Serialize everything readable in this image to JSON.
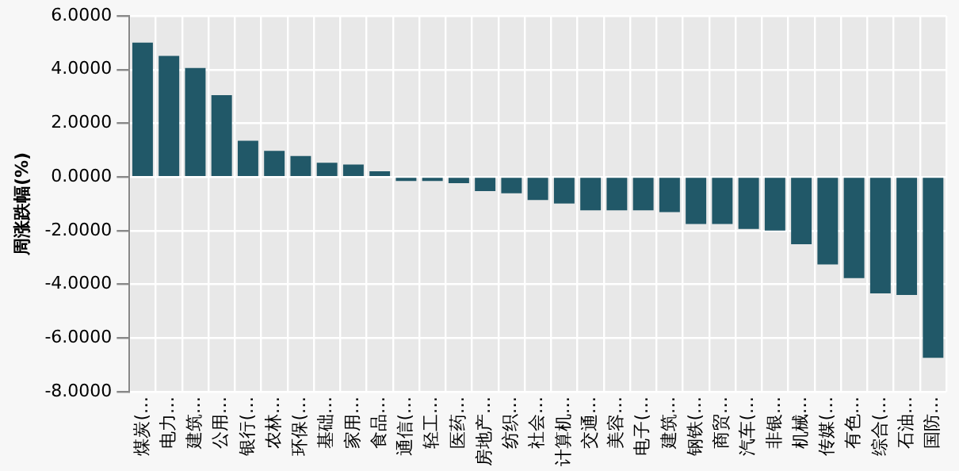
{
  "chart_data": {
    "type": "bar",
    "ylabel": "周涨跌幅(%)",
    "categories": [
      "煤炭(…",
      "电力…",
      "建筑…",
      "公用…",
      "银行(…",
      "农林…",
      "环保(…",
      "基础…",
      "家用…",
      "食品…",
      "通信(…",
      "轻工…",
      "医药…",
      "房地产…",
      "纺织…",
      "社会…",
      "计算机…",
      "交通…",
      "美容…",
      "电子(…",
      "建筑…",
      "钢铁(…",
      "商贸…",
      "汽车(…",
      "非银…",
      "机械…",
      "传媒(…",
      "有色…",
      "综合(…",
      "石油…",
      "国防…"
    ],
    "values": [
      5.0,
      4.51,
      4.06,
      3.05,
      1.35,
      0.97,
      0.78,
      0.53,
      0.46,
      0.21,
      -0.15,
      -0.15,
      -0.23,
      -0.53,
      -0.61,
      -0.86,
      -0.99,
      -1.24,
      -1.24,
      -1.24,
      -1.31,
      -1.75,
      -1.75,
      -1.94,
      -2.0,
      -2.51,
      -3.26,
      -3.77,
      -4.34,
      -4.4,
      -6.74
    ],
    "color": "#215868",
    "ylim": [
      -8,
      6
    ],
    "yticks": [
      {
        "value": -8,
        "label": "-8.0000"
      },
      {
        "value": -6,
        "label": "-6.0000"
      },
      {
        "value": -4,
        "label": "-4.0000"
      },
      {
        "value": -2,
        "label": "-2.0000"
      },
      {
        "value": 0,
        "label": "0.0000"
      },
      {
        "value": 2,
        "label": "2.0000"
      },
      {
        "value": 4,
        "label": "4.0000"
      },
      {
        "value": 6,
        "label": "6.0000"
      }
    ],
    "grid": true
  }
}
